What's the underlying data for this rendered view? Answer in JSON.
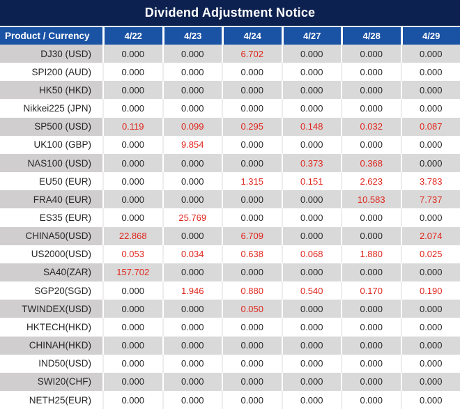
{
  "chart_data": {
    "type": "table",
    "title": "Dividend Adjustment Notice",
    "columns": [
      "Product / Currency",
      "4/22",
      "4/23",
      "4/24",
      "4/27",
      "4/28",
      "4/29"
    ],
    "zero_display": "0.000",
    "rows": [
      {
        "product": "DJ30 (USD)",
        "values": [
          "0.000",
          "0.000",
          "6.702",
          "0.000",
          "0.000",
          "0.000"
        ]
      },
      {
        "product": "SPI200 (AUD)",
        "values": [
          "0.000",
          "0.000",
          "0.000",
          "0.000",
          "0.000",
          "0.000"
        ]
      },
      {
        "product": "HK50 (HKD)",
        "values": [
          "0.000",
          "0.000",
          "0.000",
          "0.000",
          "0.000",
          "0.000"
        ]
      },
      {
        "product": "Nikkei225 (JPN)",
        "values": [
          "0.000",
          "0.000",
          "0.000",
          "0.000",
          "0.000",
          "0.000"
        ]
      },
      {
        "product": "SP500 (USD)",
        "values": [
          "0.119",
          "0.099",
          "0.295",
          "0.148",
          "0.032",
          "0.087"
        ]
      },
      {
        "product": "UK100 (GBP)",
        "values": [
          "0.000",
          "9.854",
          "0.000",
          "0.000",
          "0.000",
          "0.000"
        ]
      },
      {
        "product": "NAS100 (USD)",
        "values": [
          "0.000",
          "0.000",
          "0.000",
          "0.373",
          "0.368",
          "0.000"
        ]
      },
      {
        "product": "EU50 (EUR)",
        "values": [
          "0.000",
          "0.000",
          "1.315",
          "0.151",
          "2.623",
          "3.783"
        ]
      },
      {
        "product": "FRA40 (EUR)",
        "values": [
          "0.000",
          "0.000",
          "0.000",
          "0.000",
          "10.583",
          "7.737"
        ]
      },
      {
        "product": "ES35 (EUR)",
        "values": [
          "0.000",
          "25.769",
          "0.000",
          "0.000",
          "0.000",
          "0.000"
        ]
      },
      {
        "product": "CHINA50(USD)",
        "values": [
          "22.868",
          "0.000",
          "6.709",
          "0.000",
          "0.000",
          "2.074"
        ]
      },
      {
        "product": "US2000(USD)",
        "values": [
          "0.053",
          "0.034",
          "0.638",
          "0.068",
          "1.880",
          "0.025"
        ]
      },
      {
        "product": "SA40(ZAR)",
        "values": [
          "157.702",
          "0.000",
          "0.000",
          "0.000",
          "0.000",
          "0.000"
        ]
      },
      {
        "product": "SGP20(SGD)",
        "values": [
          "0.000",
          "1.946",
          "0.880",
          "0.540",
          "0.170",
          "0.190"
        ]
      },
      {
        "product": "TWINDEX(USD)",
        "values": [
          "0.000",
          "0.000",
          "0.050",
          "0.000",
          "0.000",
          "0.000"
        ]
      },
      {
        "product": "HKTECH(HKD)",
        "values": [
          "0.000",
          "0.000",
          "0.000",
          "0.000",
          "0.000",
          "0.000"
        ]
      },
      {
        "product": "CHINAH(HKD)",
        "values": [
          "0.000",
          "0.000",
          "0.000",
          "0.000",
          "0.000",
          "0.000"
        ]
      },
      {
        "product": "IND50(USD)",
        "values": [
          "0.000",
          "0.000",
          "0.000",
          "0.000",
          "0.000",
          "0.000"
        ]
      },
      {
        "product": "SWI20(CHF)",
        "values": [
          "0.000",
          "0.000",
          "0.000",
          "0.000",
          "0.000",
          "0.000"
        ]
      },
      {
        "product": "NETH25(EUR)",
        "values": [
          "0.000",
          "0.000",
          "0.000",
          "0.000",
          "0.000",
          "0.000"
        ]
      }
    ]
  },
  "colors": {
    "title_bg": "#0d2150",
    "header_bg": "#1a52a4",
    "row_gray": "#d9d9d9",
    "label_gray": "#d0cece",
    "red": "#e0261d",
    "text": "#262626"
  }
}
